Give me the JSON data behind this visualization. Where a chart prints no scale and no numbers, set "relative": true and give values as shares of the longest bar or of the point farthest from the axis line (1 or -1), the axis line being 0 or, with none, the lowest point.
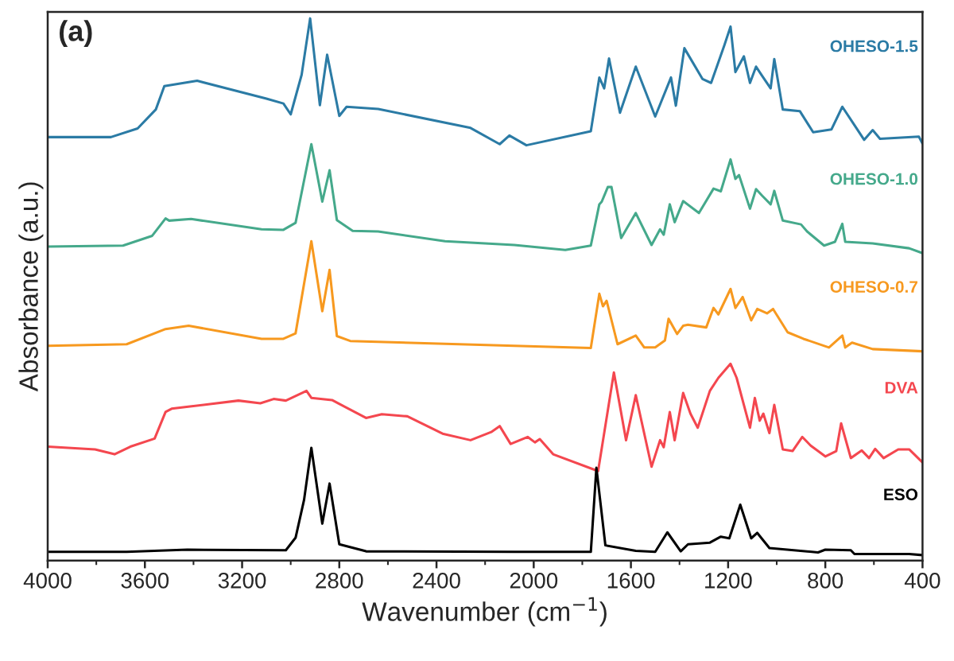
{
  "chart_data": {
    "type": "line",
    "title": "(a)",
    "xlabel": "Wavenumber (cm$^{−1}$)",
    "ylabel": "Absorbance (a.u.)",
    "relative": true,
    "xlim": [
      4000,
      400
    ],
    "xticks": [
      4000,
      3600,
      3200,
      2800,
      2400,
      2000,
      1600,
      1200,
      800,
      400
    ],
    "tick_labels": "x",
    "grid": false,
    "legend": false,
    "marker": "none",
    "line_style": "solid",
    "series": [
      {
        "name": "OHESO-1.5",
        "color": "#2b7ba5",
        "x": [
          4000,
          3740,
          3630,
          3555,
          3520,
          3385,
          3100,
          3030,
          3000,
          2955,
          2920,
          2880,
          2850,
          2800,
          2770,
          2640,
          2260,
          2140,
          2100,
          2030,
          1765,
          1730,
          1710,
          1690,
          1645,
          1580,
          1500,
          1435,
          1415,
          1380,
          1305,
          1270,
          1215,
          1190,
          1170,
          1135,
          1110,
          1085,
          1060,
          1025,
          1010,
          975,
          905,
          850,
          775,
          730,
          680,
          640,
          605,
          575,
          415,
          400
        ],
        "values": [
          0.781,
          0.781,
          0.797,
          0.832,
          0.875,
          0.885,
          0.852,
          0.843,
          0.823,
          0.896,
          1.0,
          0.84,
          0.933,
          0.82,
          0.837,
          0.833,
          0.798,
          0.768,
          0.784,
          0.766,
          0.792,
          0.891,
          0.871,
          0.926,
          0.826,
          0.911,
          0.819,
          0.891,
          0.839,
          0.945,
          0.888,
          0.881,
          0.951,
          0.985,
          0.901,
          0.93,
          0.881,
          0.911,
          0.894,
          0.871,
          0.925,
          0.832,
          0.829,
          0.79,
          0.795,
          0.837,
          0.803,
          0.776,
          0.794,
          0.778,
          0.782,
          0.769
        ]
      },
      {
        "name": "OHESO-1.0",
        "color": "#45a98b",
        "x": [
          4000,
          3690,
          3570,
          3515,
          3500,
          3410,
          3120,
          3030,
          2980,
          2915,
          2870,
          2840,
          2810,
          2745,
          2640,
          2365,
          2080,
          1870,
          1765,
          1730,
          1720,
          1695,
          1680,
          1640,
          1580,
          1515,
          1480,
          1465,
          1440,
          1420,
          1385,
          1320,
          1260,
          1230,
          1190,
          1170,
          1155,
          1110,
          1085,
          1060,
          1025,
          1010,
          975,
          900,
          875,
          805,
          760,
          730,
          718,
          605,
          455,
          400
        ],
        "values": [
          0.579,
          0.581,
          0.599,
          0.631,
          0.627,
          0.63,
          0.611,
          0.61,
          0.623,
          0.768,
          0.662,
          0.72,
          0.628,
          0.608,
          0.607,
          0.589,
          0.582,
          0.573,
          0.581,
          0.657,
          0.662,
          0.689,
          0.689,
          0.595,
          0.641,
          0.582,
          0.611,
          0.601,
          0.657,
          0.624,
          0.663,
          0.641,
          0.686,
          0.681,
          0.74,
          0.704,
          0.711,
          0.649,
          0.685,
          0.673,
          0.657,
          0.682,
          0.627,
          0.62,
          0.607,
          0.581,
          0.588,
          0.621,
          0.588,
          0.585,
          0.576,
          0.567
        ]
      },
      {
        "name": "OHESO-0.7",
        "color": "#f7991f",
        "x": [
          4000,
          3675,
          3515,
          3420,
          3120,
          3030,
          2980,
          2915,
          2870,
          2840,
          2810,
          2755,
          2080,
          1765,
          1730,
          1715,
          1700,
          1655,
          1580,
          1545,
          1500,
          1460,
          1445,
          1410,
          1385,
          1365,
          1290,
          1260,
          1240,
          1190,
          1170,
          1140,
          1105,
          1080,
          1040,
          1015,
          955,
          890,
          785,
          730,
          718,
          690,
          605,
          400
        ],
        "values": [
          0.396,
          0.399,
          0.427,
          0.433,
          0.409,
          0.409,
          0.419,
          0.589,
          0.46,
          0.536,
          0.414,
          0.405,
          0.396,
          0.392,
          0.492,
          0.469,
          0.479,
          0.399,
          0.415,
          0.393,
          0.393,
          0.406,
          0.446,
          0.418,
          0.433,
          0.435,
          0.43,
          0.466,
          0.454,
          0.501,
          0.466,
          0.486,
          0.443,
          0.464,
          0.456,
          0.464,
          0.421,
          0.409,
          0.393,
          0.415,
          0.393,
          0.402,
          0.39,
          0.386
        ]
      },
      {
        "name": "DVA",
        "color": "#f4474f",
        "x": [
          4000,
          3805,
          3725,
          3660,
          3560,
          3515,
          3490,
          3215,
          3125,
          3070,
          3020,
          2935,
          2915,
          2830,
          2690,
          2625,
          2520,
          2375,
          2260,
          2175,
          2140,
          2095,
          2025,
          1995,
          1975,
          1920,
          1735,
          1670,
          1620,
          1580,
          1515,
          1480,
          1465,
          1440,
          1420,
          1385,
          1355,
          1325,
          1275,
          1240,
          1190,
          1165,
          1110,
          1090,
          1070,
          1055,
          1030,
          1010,
          975,
          935,
          895,
          860,
          800,
          755,
          735,
          695,
          650,
          620,
          595,
          560,
          500,
          455,
          400
        ],
        "values": [
          0.21,
          0.205,
          0.196,
          0.21,
          0.225,
          0.274,
          0.28,
          0.295,
          0.29,
          0.298,
          0.295,
          0.313,
          0.3,
          0.296,
          0.263,
          0.27,
          0.266,
          0.234,
          0.222,
          0.237,
          0.248,
          0.215,
          0.228,
          0.218,
          0.224,
          0.196,
          0.165,
          0.347,
          0.222,
          0.305,
          0.173,
          0.222,
          0.209,
          0.274,
          0.222,
          0.309,
          0.271,
          0.245,
          0.313,
          0.337,
          0.363,
          0.337,
          0.245,
          0.3,
          0.258,
          0.271,
          0.235,
          0.287,
          0.205,
          0.202,
          0.228,
          0.212,
          0.192,
          0.202,
          0.253,
          0.189,
          0.203,
          0.189,
          0.206,
          0.189,
          0.205,
          0.205,
          0.181
        ]
      },
      {
        "name": "ESO",
        "color": "#000000",
        "x": [
          4000,
          3675,
          3425,
          3020,
          2980,
          2945,
          2915,
          2870,
          2840,
          2800,
          2690,
          2080,
          1765,
          1742,
          1705,
          1580,
          1500,
          1450,
          1395,
          1365,
          1275,
          1230,
          1195,
          1150,
          1105,
          1080,
          1030,
          830,
          800,
          695,
          680,
          455,
          400
        ],
        "values": [
          0.016,
          0.016,
          0.02,
          0.019,
          0.042,
          0.112,
          0.208,
          0.068,
          0.142,
          0.03,
          0.017,
          0.016,
          0.016,
          0.171,
          0.028,
          0.018,
          0.016,
          0.052,
          0.017,
          0.03,
          0.033,
          0.044,
          0.041,
          0.103,
          0.041,
          0.051,
          0.023,
          0.015,
          0.02,
          0.019,
          0.012,
          0.012,
          0.01
        ]
      }
    ]
  }
}
